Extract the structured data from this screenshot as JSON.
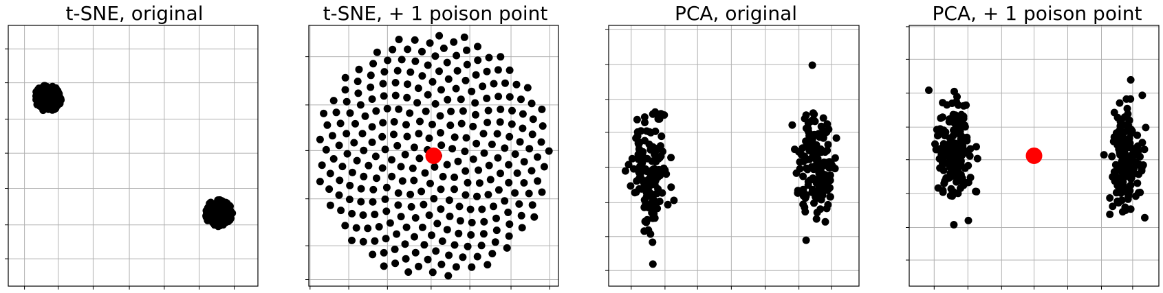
{
  "colors": {
    "point": "#000000",
    "poison": "#ff0000",
    "grid": "#b0b0b0",
    "axes": "#000000"
  },
  "chart_data": [
    {
      "type": "scatter",
      "title": "t-SNE, original",
      "xlim": [
        0,
        7
      ],
      "ylim": [
        0,
        7.5
      ],
      "grid": true,
      "tick_labels_shown": false,
      "clusters": [
        {
          "name": "",
          "center": [
            1.1,
            5.4
          ],
          "spread": [
            0.38,
            0.38
          ],
          "count": 150,
          "shape": "disk"
        },
        {
          "name": "",
          "center": [
            5.9,
            2.1
          ],
          "spread": [
            0.38,
            0.38
          ],
          "count": 150,
          "shape": "disk"
        }
      ],
      "poison_point": null
    },
    {
      "type": "scatter",
      "title": "t-SNE, + 1 poison point",
      "xlim": [
        -3.5,
        3.5
      ],
      "ylim": [
        -3.5,
        3.5
      ],
      "grid": true,
      "tick_labels_shown": false,
      "clusters": [
        {
          "name": "",
          "center": [
            0,
            0
          ],
          "spread": [
            3.3,
            3.3
          ],
          "count": 300,
          "shape": "sunflower"
        }
      ],
      "poison_point": [
        0,
        0
      ]
    },
    {
      "type": "scatter",
      "title": "PCA, original",
      "xlim": [
        -2.7,
        2.7
      ],
      "ylim": [
        -3.2,
        3.2
      ],
      "grid": true,
      "tick_labels_shown": false,
      "clusters": [
        {
          "name": "",
          "center": [
            -1.8,
            -0.4
          ],
          "spread": [
            0.2,
            0.7
          ],
          "count": 150,
          "shape": "gaussian"
        },
        {
          "name": "",
          "center": [
            1.8,
            -0.2
          ],
          "spread": [
            0.2,
            0.7
          ],
          "count": 150,
          "shape": "gaussian"
        }
      ],
      "poison_point": null
    },
    {
      "type": "scatter",
      "title": "PCA, + 1 poison point",
      "xlim": [
        -3.0,
        3.0
      ],
      "ylim": [
        -3.2,
        3.2
      ],
      "grid": true,
      "tick_labels_shown": false,
      "clusters": [
        {
          "name": "",
          "center": [
            -1.9,
            0.1
          ],
          "spread": [
            0.22,
            0.7
          ],
          "count": 150,
          "shape": "gaussian"
        },
        {
          "name": "",
          "center": [
            2.2,
            0.0
          ],
          "spread": [
            0.22,
            0.7
          ],
          "count": 150,
          "shape": "gaussian"
        }
      ],
      "poison_point": [
        0,
        0
      ]
    }
  ]
}
